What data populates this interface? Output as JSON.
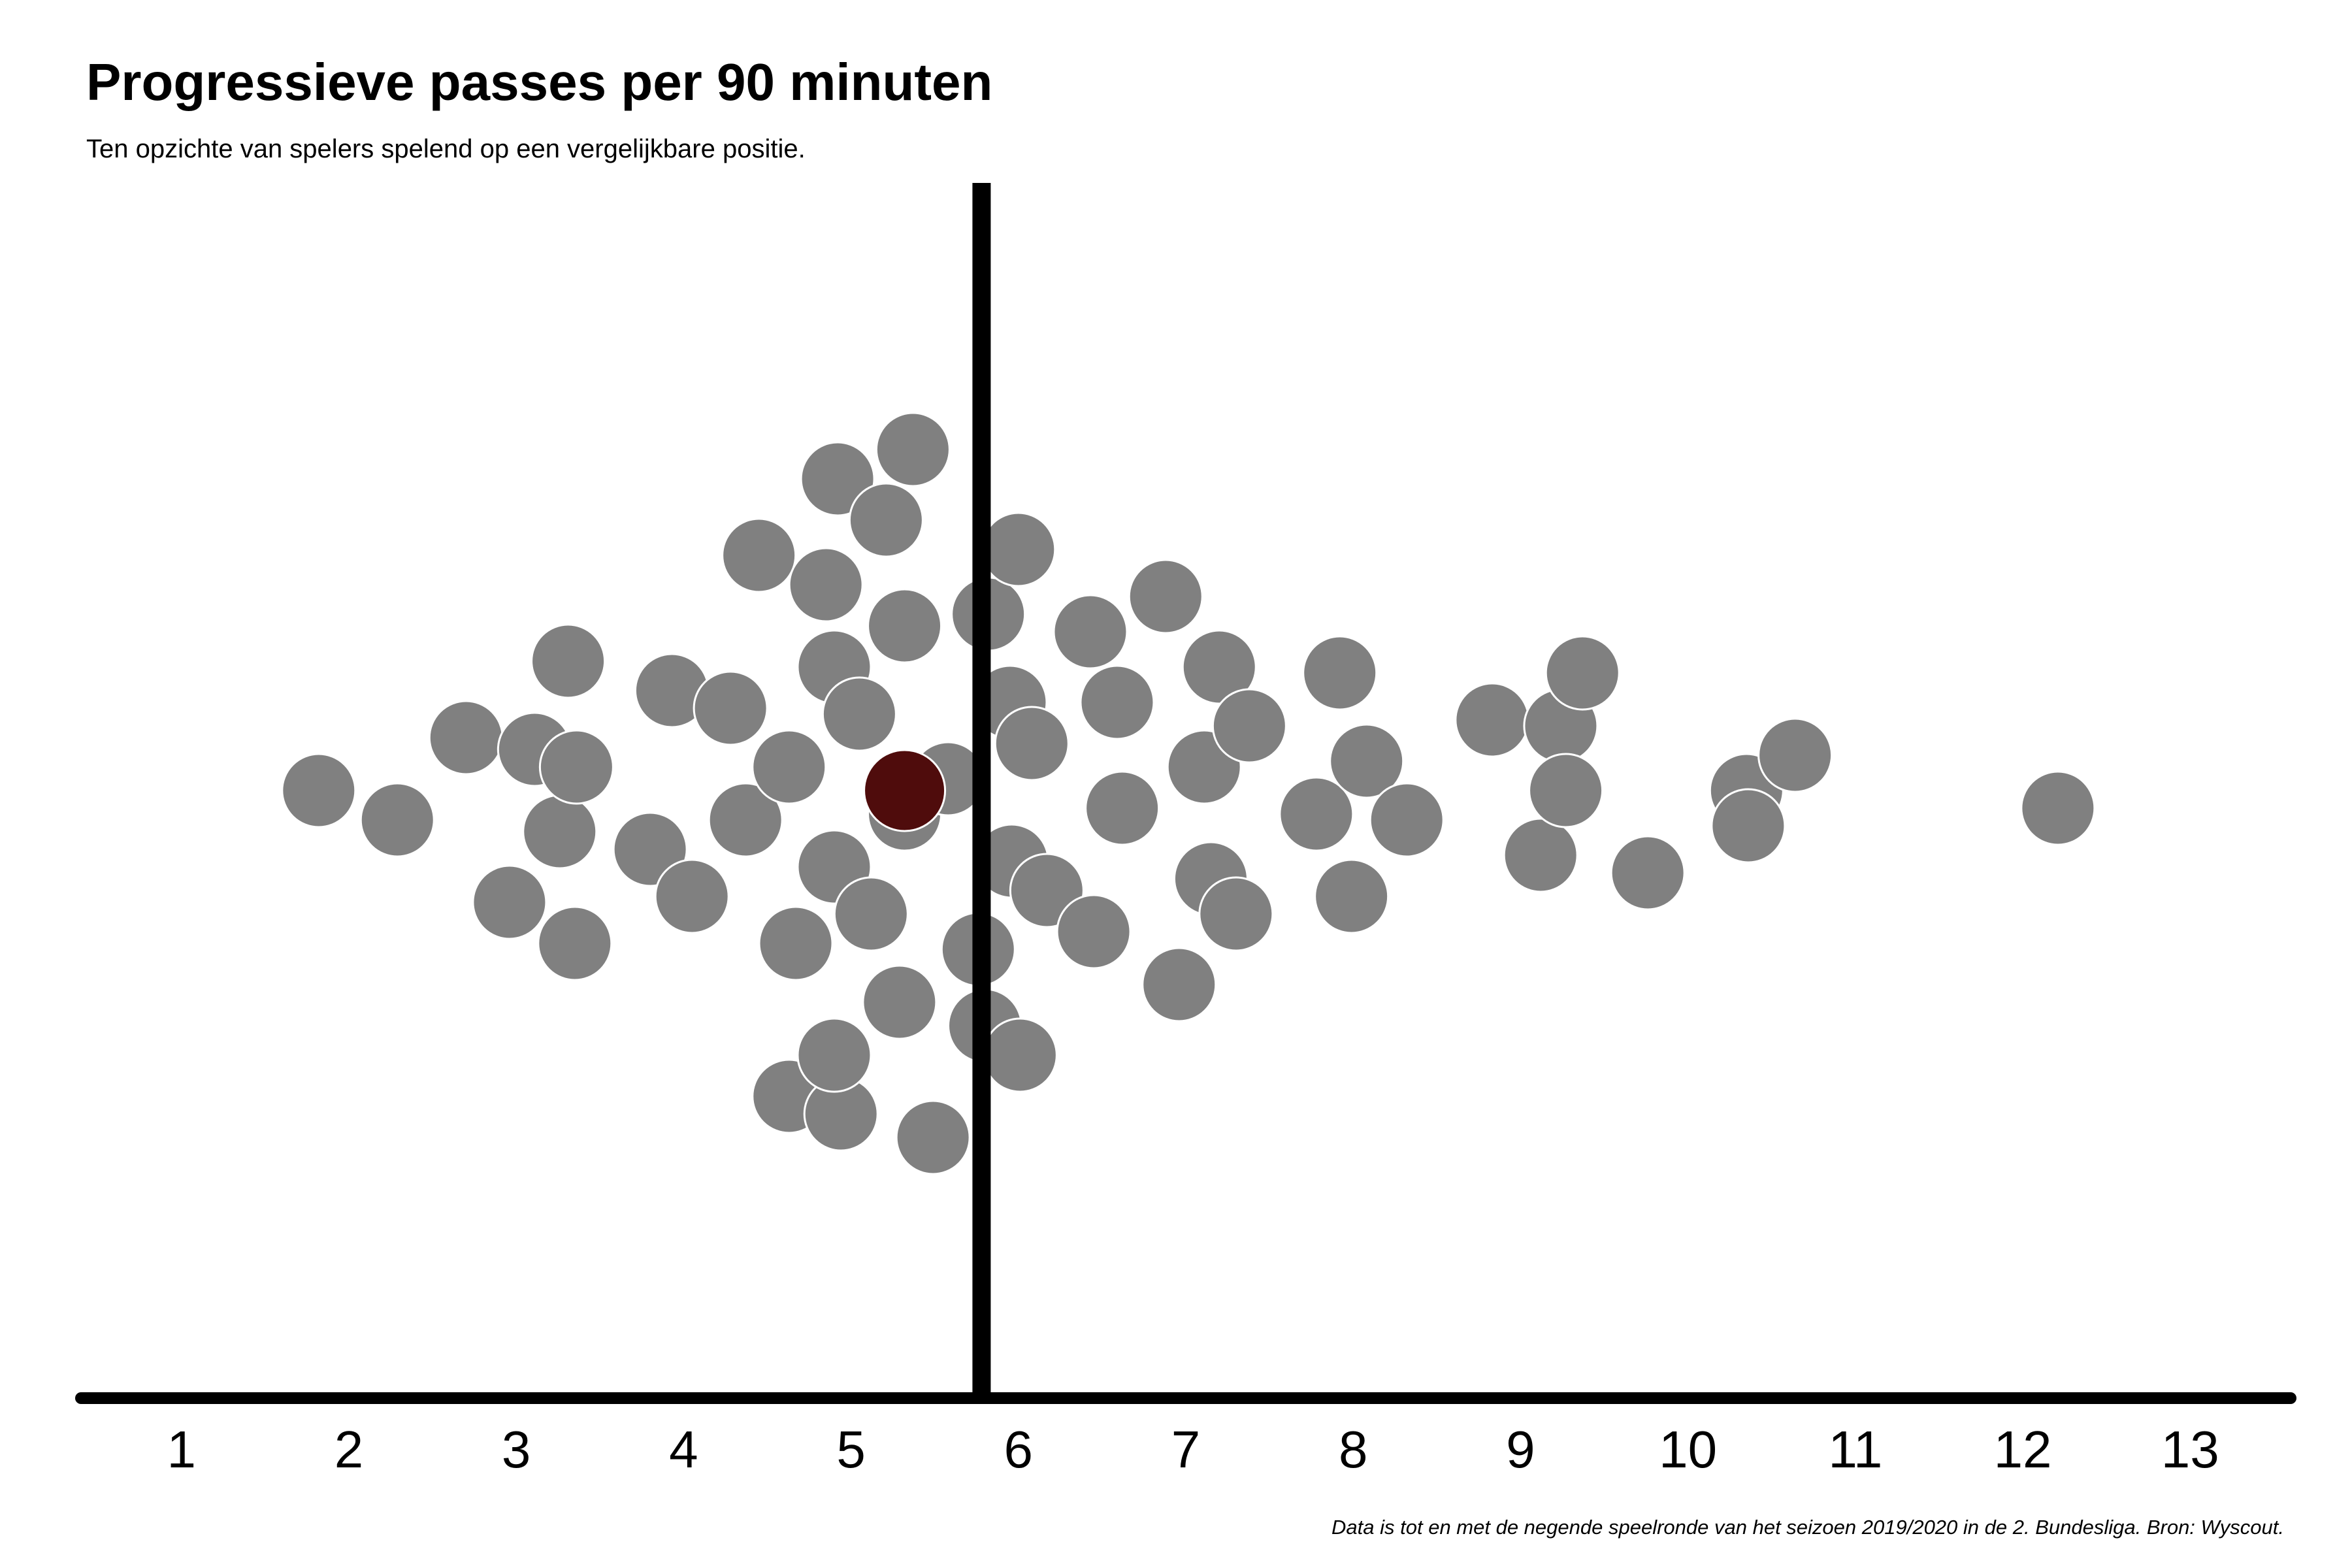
{
  "chart_data": {
    "type": "scatter",
    "style": "beeswarm",
    "title": "Progressieve passes per 90 minuten",
    "subtitle": "Ten opzichte van spelers spelend op een vergelijkbare positie.",
    "caption": "Data is tot en met de negende speelronde van het seizoen 2019/2020 in de 2. Bundesliga. Bron: Wyscout.",
    "xlim": [
      0.4,
      13.6
    ],
    "ylim": [
      -1,
      1
    ],
    "ticks": [
      "1",
      "2",
      "3",
      "4",
      "5",
      "6",
      "7",
      "8",
      "9",
      "10",
      "11",
      "12",
      "13"
    ],
    "reference_line_x": 5.78,
    "colors": {
      "points": "#808080",
      "point_stroke": "#ffffff",
      "highlight": "#4f0c0c",
      "axis": "#000000",
      "reference_line": "#000000"
    },
    "highlight": {
      "x": 5.32,
      "y": 0.0
    },
    "points": [
      {
        "x": 1.82,
        "y": 0.0
      },
      {
        "x": 2.29,
        "y": -0.05
      },
      {
        "x": 2.7,
        "y": 0.09
      },
      {
        "x": 2.96,
        "y": -0.19
      },
      {
        "x": 3.11,
        "y": 0.07
      },
      {
        "x": 3.26,
        "y": -0.07
      },
      {
        "x": 3.31,
        "y": 0.22
      },
      {
        "x": 3.36,
        "y": 0.04
      },
      {
        "x": 3.35,
        "y": -0.26
      },
      {
        "x": 3.8,
        "y": -0.1
      },
      {
        "x": 3.93,
        "y": 0.17
      },
      {
        "x": 4.05,
        "y": -0.18
      },
      {
        "x": 4.28,
        "y": 0.14
      },
      {
        "x": 4.37,
        "y": -0.05
      },
      {
        "x": 4.45,
        "y": 0.4
      },
      {
        "x": 4.63,
        "y": 0.04
      },
      {
        "x": 4.67,
        "y": -0.26
      },
      {
        "x": 4.63,
        "y": -0.52
      },
      {
        "x": 4.85,
        "y": 0.35
      },
      {
        "x": 4.9,
        "y": 0.21
      },
      {
        "x": 4.9,
        "y": -0.13
      },
      {
        "x": 4.94,
        "y": -0.55
      },
      {
        "x": 4.9,
        "y": -0.45
      },
      {
        "x": 4.92,
        "y": 0.53
      },
      {
        "x": 5.05,
        "y": 0.13
      },
      {
        "x": 5.12,
        "y": -0.21
      },
      {
        "x": 5.21,
        "y": 0.46
      },
      {
        "x": 5.29,
        "y": -0.36
      },
      {
        "x": 5.32,
        "y": -0.04
      },
      {
        "x": 5.32,
        "y": 0.28
      },
      {
        "x": 5.37,
        "y": 0.58
      },
      {
        "x": 5.49,
        "y": -0.59
      },
      {
        "x": 5.58,
        "y": 0.02
      },
      {
        "x": 5.76,
        "y": -0.27
      },
      {
        "x": 5.8,
        "y": -0.4
      },
      {
        "x": 5.82,
        "y": 0.3
      },
      {
        "x": 5.95,
        "y": 0.15
      },
      {
        "x": 5.96,
        "y": -0.12
      },
      {
        "x": 6.0,
        "y": 0.41
      },
      {
        "x": 6.01,
        "y": -0.45
      },
      {
        "x": 6.08,
        "y": 0.08
      },
      {
        "x": 6.17,
        "y": -0.17
      },
      {
        "x": 6.43,
        "y": 0.27
      },
      {
        "x": 6.45,
        "y": -0.24
      },
      {
        "x": 6.59,
        "y": 0.15
      },
      {
        "x": 6.62,
        "y": -0.03
      },
      {
        "x": 6.88,
        "y": 0.33
      },
      {
        "x": 6.96,
        "y": -0.33
      },
      {
        "x": 7.11,
        "y": 0.04
      },
      {
        "x": 7.15,
        "y": -0.15
      },
      {
        "x": 7.2,
        "y": 0.21
      },
      {
        "x": 7.3,
        "y": -0.21
      },
      {
        "x": 7.38,
        "y": 0.11
      },
      {
        "x": 7.78,
        "y": -0.04
      },
      {
        "x": 7.92,
        "y": 0.2
      },
      {
        "x": 7.99,
        "y": -0.18
      },
      {
        "x": 8.08,
        "y": 0.05
      },
      {
        "x": 8.32,
        "y": -0.05
      },
      {
        "x": 8.83,
        "y": 0.12
      },
      {
        "x": 9.12,
        "y": -0.11
      },
      {
        "x": 9.24,
        "y": 0.11
      },
      {
        "x": 9.27,
        "y": 0.0
      },
      {
        "x": 9.37,
        "y": 0.2
      },
      {
        "x": 9.76,
        "y": -0.14
      },
      {
        "x": 10.35,
        "y": 0.0
      },
      {
        "x": 10.36,
        "y": -0.06
      },
      {
        "x": 10.64,
        "y": 0.06
      },
      {
        "x": 12.21,
        "y": -0.03
      }
    ]
  }
}
